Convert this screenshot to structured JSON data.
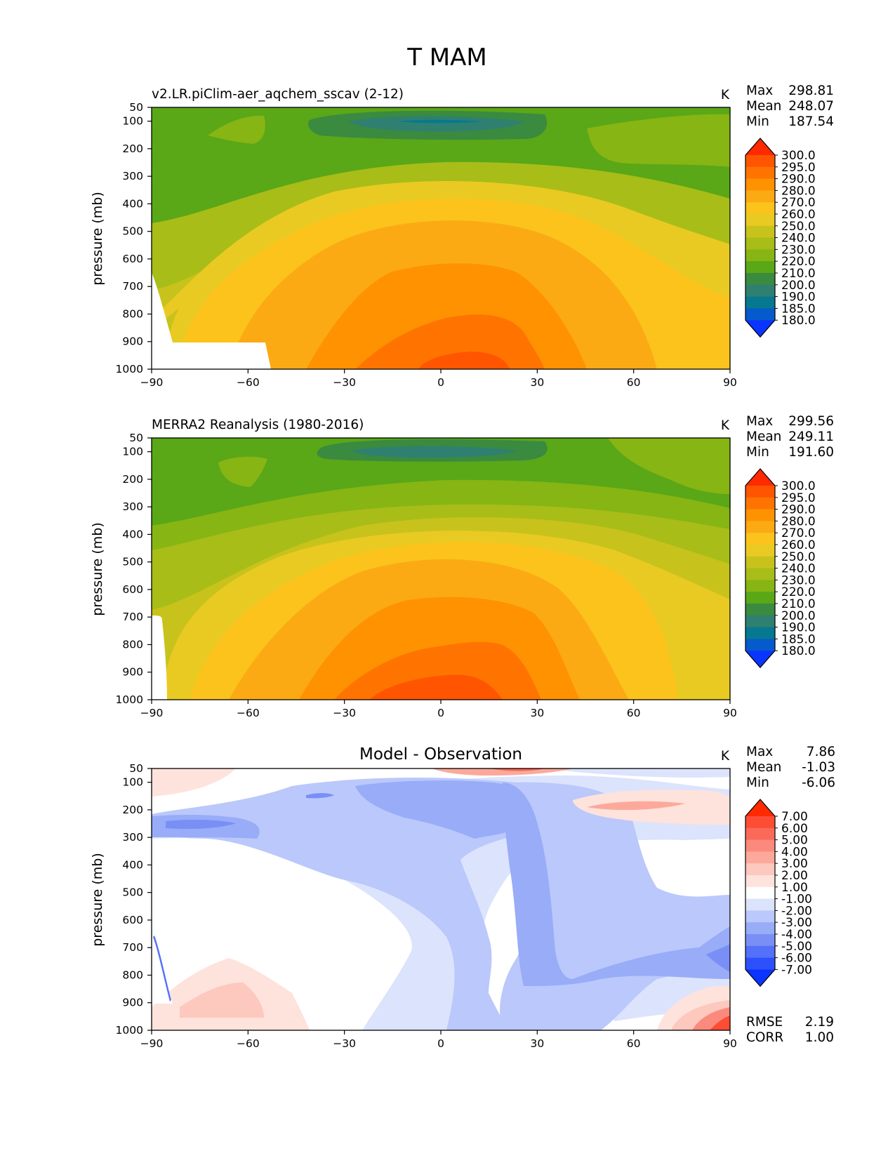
{
  "figure": {
    "title": "T MAM"
  },
  "chart_data": [
    {
      "type": "contour",
      "title": "v2.LR.piClim-aer_aqchem_sscav (2-12)",
      "units": "K",
      "ylabel": "pressure (mb)",
      "xlabel": "",
      "xlim": [
        -90,
        90
      ],
      "ylim": [
        1000,
        50
      ],
      "xticks": [
        "−90",
        "−60",
        "−30",
        "0",
        "30",
        "60",
        "90"
      ],
      "yticks": [
        "50",
        "100",
        "200",
        "300",
        "400",
        "500",
        "600",
        "700",
        "800",
        "900",
        "1000"
      ],
      "stats": [
        {
          "label": "Max",
          "value": "298.81"
        },
        {
          "label": "Mean",
          "value": "248.07"
        },
        {
          "label": "Min",
          "value": "187.54"
        }
      ],
      "colorbar": {
        "labels": [
          "300.0",
          "295.0",
          "290.0",
          "280.0",
          "270.0",
          "260.0",
          "250.0",
          "240.0",
          "230.0",
          "220.0",
          "210.0",
          "200.0",
          "190.0",
          "185.0",
          "180.0"
        ],
        "colors": [
          "#ff2a00",
          "#ff5500",
          "#ff7400",
          "#ff9200",
          "#fbaa14",
          "#fbc31c",
          "#e9ca22",
          "#c8c21c",
          "#a8bd18",
          "#86b514",
          "#5aa718",
          "#3a8a40",
          "#2f8070",
          "#067990",
          "#065bcc",
          "#0a35ff"
        ]
      },
      "extra_stats": []
    },
    {
      "type": "contour",
      "title": "MERRA2 Reanalysis (1980-2016)",
      "units": "K",
      "ylabel": "pressure (mb)",
      "xlabel": "",
      "xlim": [
        -90,
        90
      ],
      "ylim": [
        1000,
        50
      ],
      "xticks": [
        "−90",
        "−60",
        "−30",
        "0",
        "30",
        "60",
        "90"
      ],
      "yticks": [
        "50",
        "100",
        "200",
        "300",
        "400",
        "500",
        "600",
        "700",
        "800",
        "900",
        "1000"
      ],
      "stats": [
        {
          "label": "Max",
          "value": "299.56"
        },
        {
          "label": "Mean",
          "value": "249.11"
        },
        {
          "label": "Min",
          "value": "191.60"
        }
      ],
      "colorbar": {
        "labels": [
          "300.0",
          "295.0",
          "290.0",
          "280.0",
          "270.0",
          "260.0",
          "250.0",
          "240.0",
          "230.0",
          "220.0",
          "210.0",
          "200.0",
          "190.0",
          "185.0",
          "180.0"
        ],
        "colors": [
          "#ff2a00",
          "#ff5500",
          "#ff7400",
          "#ff9200",
          "#fbaa14",
          "#fbc31c",
          "#e9ca22",
          "#c8c21c",
          "#a8bd18",
          "#86b514",
          "#5aa718",
          "#3a8a40",
          "#2f8070",
          "#067990",
          "#065bcc",
          "#0a35ff"
        ]
      },
      "extra_stats": []
    },
    {
      "type": "contour",
      "title": "Model - Observation",
      "units": "K",
      "ylabel": "pressure (mb)",
      "xlabel": "",
      "xlim": [
        -90,
        90
      ],
      "ylim": [
        1000,
        50
      ],
      "xticks": [
        "−90",
        "−60",
        "−30",
        "0",
        "30",
        "60",
        "90"
      ],
      "yticks": [
        "50",
        "100",
        "200",
        "300",
        "400",
        "500",
        "600",
        "700",
        "800",
        "900",
        "1000"
      ],
      "stats": [
        {
          "label": "Max",
          "value": "7.86"
        },
        {
          "label": "Mean",
          "value": "-1.03"
        },
        {
          "label": "Min",
          "value": "-6.06"
        }
      ],
      "colorbar": {
        "labels": [
          "7.00",
          "6.00",
          "5.00",
          "4.00",
          "3.00",
          "2.00",
          "1.00",
          "-1.00",
          "-2.00",
          "-3.00",
          "-4.00",
          "-5.00",
          "-6.00",
          "-7.00"
        ],
        "colors": [
          "#ff2a00",
          "#fe4d35",
          "#fb6a58",
          "#fb8a7d",
          "#fca99b",
          "#fdc8bd",
          "#fee2dc",
          "#ffffff",
          "#dce3fc",
          "#bac8fb",
          "#98acf8",
          "#7a8ff6",
          "#5570f9",
          "#2e50fb",
          "#0a35ff"
        ]
      },
      "extra_stats": [
        {
          "label": "RMSE",
          "value": "2.19"
        },
        {
          "label": "CORR",
          "value": "1.00"
        }
      ]
    }
  ]
}
